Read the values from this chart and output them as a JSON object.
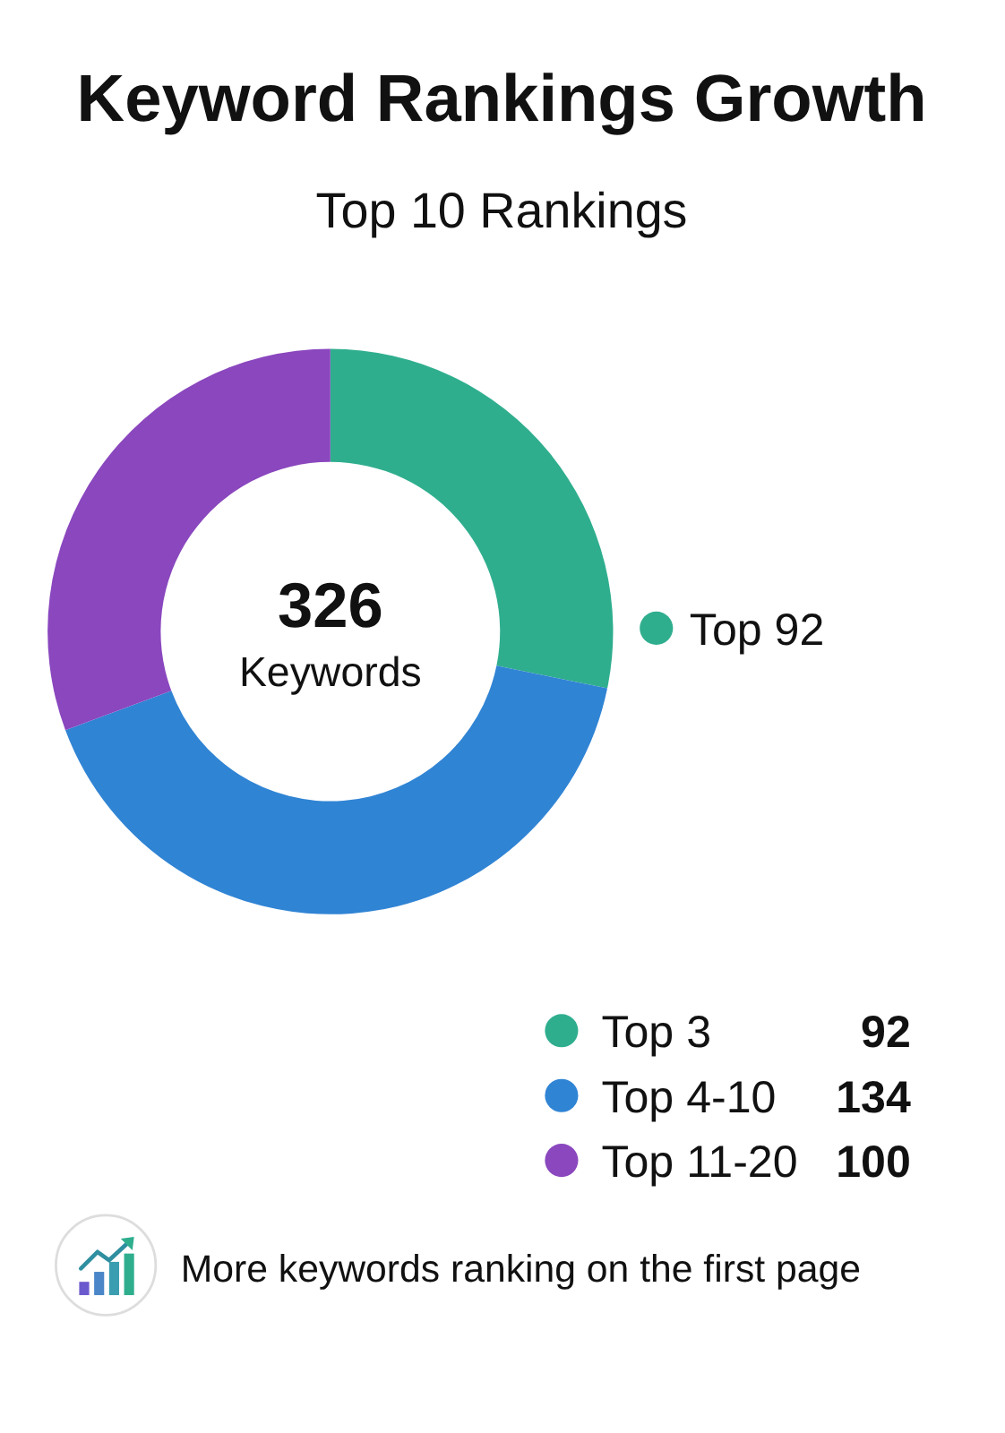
{
  "chart_data": {
    "type": "donut",
    "title": "Keyword Rankings Growth",
    "subtitle": "Top 10 Rankings",
    "categories": [
      "Top 3",
      "Top 4-10",
      "Top 11-20"
    ],
    "values": [
      92,
      134,
      100
    ],
    "colors": [
      "#2fae8e",
      "#3084d4",
      "#8a47be"
    ],
    "data_labels": true,
    "legend": "bottom right",
    "annotations": [
      "326",
      "Keywords",
      "Top 92",
      "More keywords ranking on the first page"
    ]
  }
}
